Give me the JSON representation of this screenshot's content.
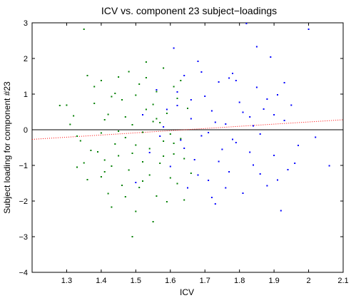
{
  "chart_data": {
    "type": "scatter",
    "title": "ICV vs. component 23 subject−loadings",
    "xlabel": "ICV",
    "ylabel": "Subject loading for component #23",
    "xlim": [
      1.2,
      2.1
    ],
    "ylim": [
      -4,
      3
    ],
    "xticks": [
      1.3,
      1.4,
      1.5,
      1.6,
      1.7,
      1.8,
      1.9,
      2,
      2.1
    ],
    "xtick_labels": [
      "1.3",
      "1.4",
      "1.5",
      "1.6",
      "1.7",
      "1.8",
      "1.9",
      "2",
      "2.1"
    ],
    "yticks": [
      -4,
      -3,
      -2,
      -1,
      0,
      1,
      2,
      3
    ],
    "ytick_labels": [
      "−4",
      "−3",
      "−2",
      "−1",
      "0",
      "1",
      "2",
      "3"
    ],
    "grid": false,
    "zero_line_y": 0,
    "trend_line": {
      "color": "#ff0000",
      "style": "dotted",
      "x": [
        1.2,
        2.1
      ],
      "y": [
        -0.27,
        0.28
      ]
    },
    "series": [
      {
        "color": "#007f00",
        "points": [
          [
            1.28,
            0.68
          ],
          [
            1.3,
            0.69
          ],
          [
            1.31,
            0.15
          ],
          [
            1.32,
            0.39
          ],
          [
            1.33,
            -0.18
          ],
          [
            1.33,
            -1.05
          ],
          [
            1.34,
            -0.31
          ],
          [
            1.35,
            2.82
          ],
          [
            1.36,
            -1.4
          ],
          [
            1.36,
            1.52
          ],
          [
            1.37,
            -0.58
          ],
          [
            1.38,
            1.21
          ],
          [
            1.38,
            0.74
          ],
          [
            1.39,
            -0.62
          ],
          [
            1.4,
            -1.32
          ],
          [
            1.4,
            -0.09
          ],
          [
            1.41,
            -0.85
          ],
          [
            1.41,
            0.28
          ],
          [
            1.42,
            -1.79
          ],
          [
            1.42,
            0.43
          ],
          [
            1.43,
            -2.17
          ],
          [
            1.43,
            -1.02
          ],
          [
            1.44,
            1.02
          ],
          [
            1.44,
            -0.4
          ],
          [
            1.45,
            1.48
          ],
          [
            1.45,
            -0.73
          ],
          [
            1.46,
            0.84
          ],
          [
            1.46,
            -1.56
          ],
          [
            1.47,
            -0.22
          ],
          [
            1.47,
            0.36
          ],
          [
            1.48,
            1.63
          ],
          [
            1.48,
            -1.13
          ],
          [
            1.49,
            -3.0
          ],
          [
            1.49,
            0.14
          ],
          [
            1.5,
            -0.43
          ],
          [
            1.5,
            0.97
          ],
          [
            1.51,
            -1.62
          ],
          [
            1.51,
            1.28
          ],
          [
            1.52,
            -0.9
          ],
          [
            1.52,
            -0.07
          ],
          [
            1.53,
            0.57
          ],
          [
            1.53,
            1.9
          ],
          [
            1.54,
            -1.27
          ],
          [
            1.54,
            -0.53
          ],
          [
            1.55,
            -2.58
          ],
          [
            1.55,
            0.71
          ],
          [
            1.56,
            -1.86
          ],
          [
            1.56,
            1.07
          ],
          [
            1.57,
            0.2
          ],
          [
            1.57,
            -0.94
          ],
          [
            1.58,
            -0.32
          ],
          [
            1.58,
            1.73
          ],
          [
            1.59,
            -2.02
          ],
          [
            1.59,
            0.46
          ],
          [
            1.6,
            -1.35
          ],
          [
            1.6,
            -0.12
          ],
          [
            1.61,
            1.21
          ],
          [
            1.61,
            -0.68
          ],
          [
            1.62,
            0.88
          ],
          [
            1.62,
            -1.51
          ],
          [
            1.63,
            -0.25
          ],
          [
            1.63,
            1.38
          ],
          [
            1.64,
            -0.81
          ],
          [
            1.64,
            -1.97
          ],
          [
            1.65,
            0.6
          ],
          [
            1.66,
            -1.22
          ],
          [
            1.4,
            1.38
          ],
          [
            1.5,
            -2.29
          ],
          [
            1.45,
            -0.04
          ],
          [
            1.55,
            0.23
          ],
          [
            1.35,
            -0.93
          ],
          [
            1.58,
            -0.74
          ],
          [
            1.47,
            -1.88
          ],
          [
            1.53,
            1.46
          ],
          [
            1.61,
            -0.38
          ],
          [
            1.43,
            0.93
          ],
          [
            1.52,
            -1.44
          ],
          [
            1.56,
            0.31
          ],
          [
            1.49,
            -0.66
          ],
          [
            1.41,
            -1.18
          ]
        ]
      },
      {
        "color": "#0000ff",
        "points": [
          [
            1.5,
            -1.48
          ],
          [
            1.52,
            0.42
          ],
          [
            1.54,
            -0.64
          ],
          [
            1.56,
            1.12
          ],
          [
            1.58,
            0.08
          ],
          [
            1.6,
            -1.03
          ],
          [
            1.61,
            2.29
          ],
          [
            1.62,
            0.68
          ],
          [
            1.63,
            -0.29
          ],
          [
            1.64,
            1.52
          ],
          [
            1.65,
            -1.63
          ],
          [
            1.66,
            0.31
          ],
          [
            1.67,
            -0.84
          ],
          [
            1.68,
            1.92
          ],
          [
            1.69,
            -0.17
          ],
          [
            1.7,
            0.94
          ],
          [
            1.71,
            -1.42
          ],
          [
            1.72,
            0.53
          ],
          [
            1.73,
            -2.08
          ],
          [
            1.74,
            1.34
          ],
          [
            1.75,
            -0.55
          ],
          [
            1.76,
            0.16
          ],
          [
            1.77,
            -1.18
          ],
          [
            1.78,
            1.58
          ],
          [
            1.79,
            -0.36
          ],
          [
            1.8,
            0.77
          ],
          [
            1.81,
            -1.78
          ],
          [
            1.82,
            2.98
          ],
          [
            1.83,
            0.36
          ],
          [
            1.84,
            -0.99
          ],
          [
            1.85,
            1.19
          ],
          [
            1.86,
            -0.12
          ],
          [
            1.87,
            0.58
          ],
          [
            1.88,
            -1.57
          ],
          [
            1.89,
            2.04
          ],
          [
            1.9,
            -0.72
          ],
          [
            1.91,
            0.98
          ],
          [
            1.92,
            -2.27
          ],
          [
            1.93,
            0.26
          ],
          [
            1.94,
            -1.12
          ],
          [
            1.95,
            0.69
          ],
          [
            1.97,
            -0.44
          ],
          [
            2.0,
            2.82
          ],
          [
            2.02,
            -0.21
          ],
          [
            2.06,
            -1.01
          ],
          [
            1.69,
            1.62
          ],
          [
            1.74,
            -0.89
          ],
          [
            1.79,
            1.38
          ],
          [
            1.86,
            -1.24
          ],
          [
            1.66,
            0.84
          ],
          [
            1.76,
            -1.63
          ],
          [
            1.81,
            0.49
          ],
          [
            1.71,
            -0.08
          ],
          [
            1.91,
            -1.41
          ],
          [
            1.84,
            0.11
          ],
          [
            1.64,
            -0.52
          ],
          [
            1.73,
            0.21
          ],
          [
            1.78,
            -0.27
          ],
          [
            1.88,
            0.86
          ],
          [
            1.83,
            -0.63
          ],
          [
            1.68,
            -1.27
          ],
          [
            1.93,
            1.32
          ],
          [
            1.96,
            -0.94
          ],
          [
            1.57,
            -0.18
          ],
          [
            1.62,
            1.06
          ],
          [
            1.85,
            2.33
          ],
          [
            1.77,
            1.45
          ],
          [
            1.59,
            0.57
          ],
          [
            1.72,
            -1.9
          ],
          [
            1.9,
            0.42
          ]
        ]
      }
    ]
  }
}
